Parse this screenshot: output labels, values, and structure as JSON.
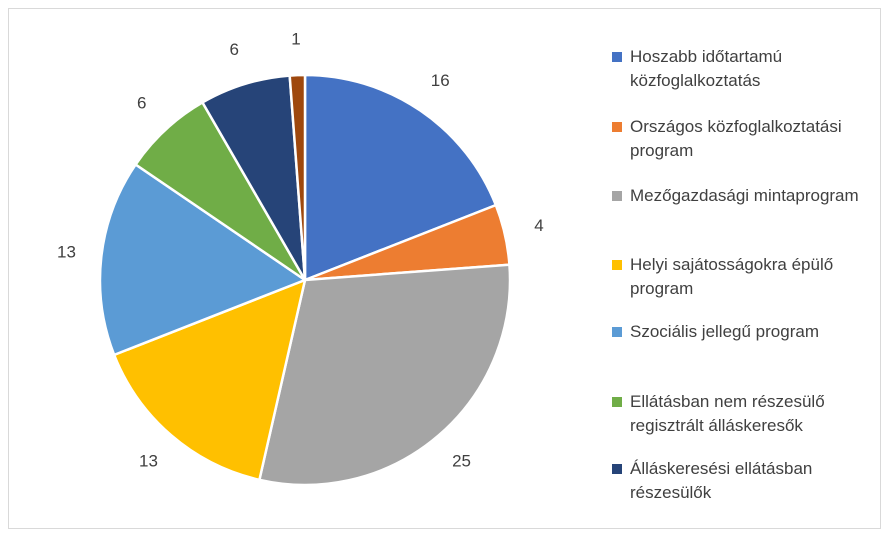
{
  "chart_data": {
    "type": "pie",
    "categories": [
      "Hoszabb időtartamú közfoglalkoztatás",
      "Országos közfoglalkoztatási program",
      "Mezőgazdasági mintaprogram",
      "Helyi sajátosságokra épülő program",
      "Szociális jellegű program",
      "Ellátásban nem részesülő regisztrált álláskeresők",
      "Álláskeresési ellátásban részesülők",
      null
    ],
    "values": [
      16,
      4,
      25,
      13,
      13,
      6,
      6,
      1
    ],
    "colors": [
      "#4472c4",
      "#ed7d31",
      "#a5a5a5",
      "#ffc000",
      "#5b9bd5",
      "#70ad47",
      "#264478",
      "#9e480e"
    ],
    "legend": "right"
  }
}
